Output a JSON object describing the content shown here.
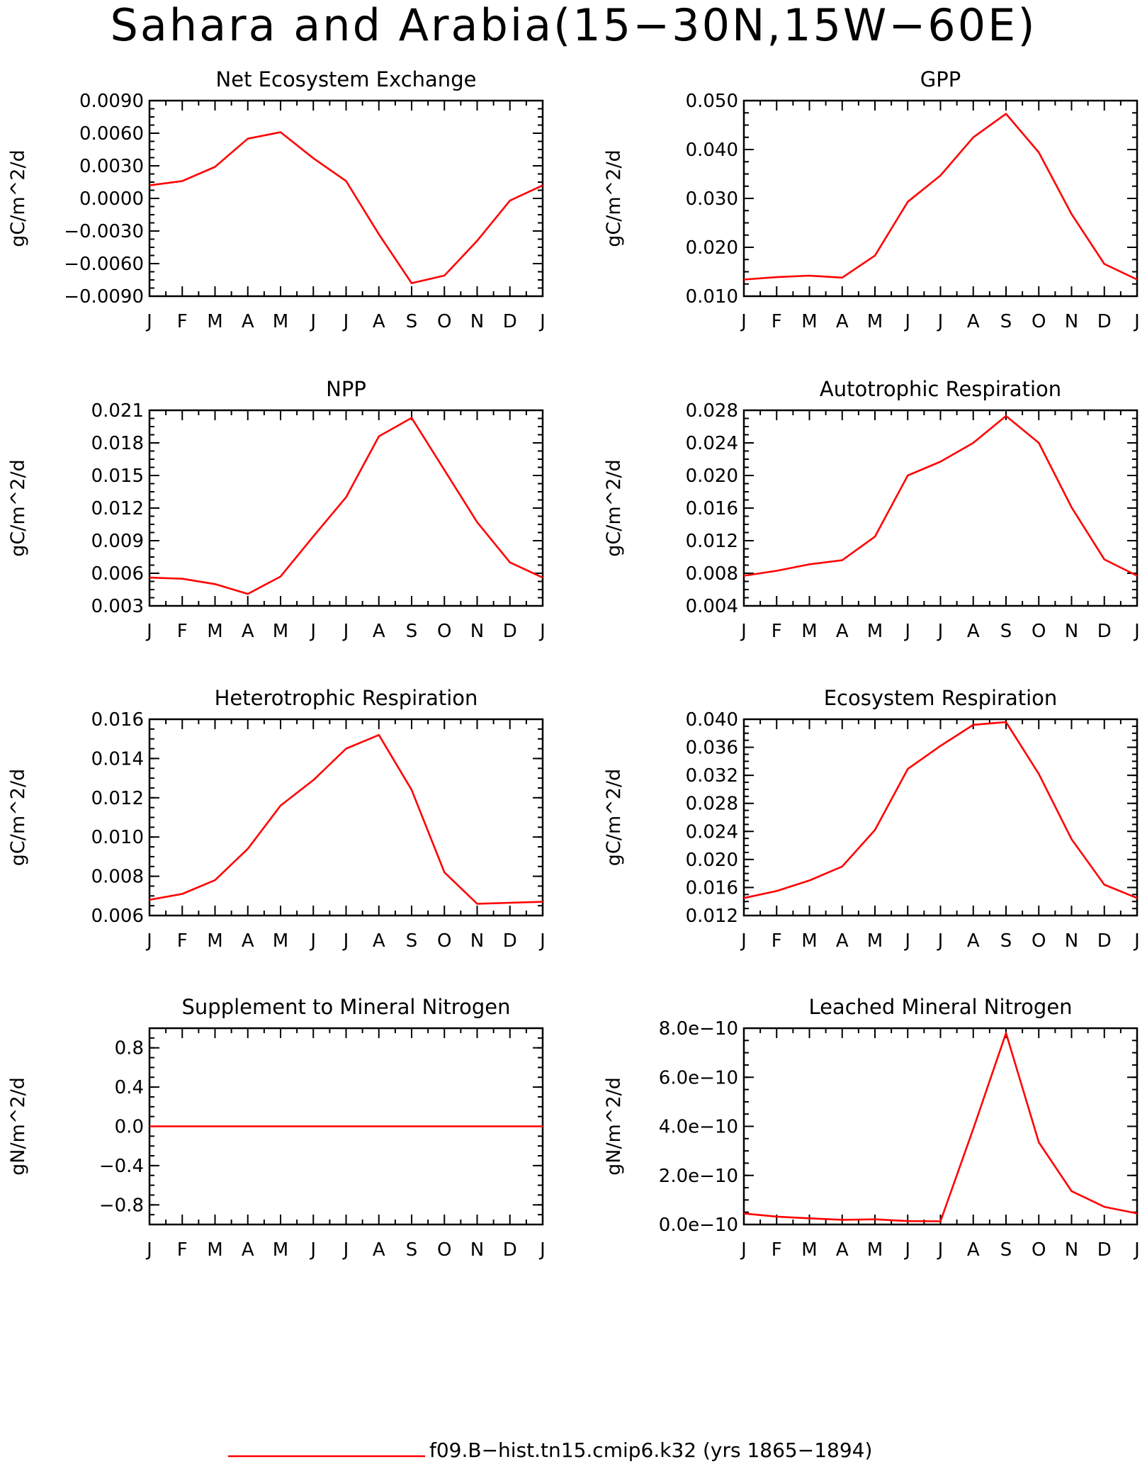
{
  "title": "Sahara and Arabia(15−30N,15W−60E)",
  "legend": {
    "label": "f09.B−hist.tn15.cmip6.k32 (yrs 1865−1894)",
    "color": "#ff0000"
  },
  "chart_data": [
    {
      "type": "line",
      "title": "Net Ecosystem Exchange",
      "ylabel": "gC/m^2/d",
      "categories": [
        "J",
        "F",
        "M",
        "A",
        "M",
        "J",
        "J",
        "A",
        "S",
        "O",
        "N",
        "D",
        "J"
      ],
      "ylim": [
        -0.009,
        0.009
      ],
      "yticks": [
        -0.009,
        -0.006,
        -0.003,
        0.0,
        0.003,
        0.006,
        0.009
      ],
      "ytick_labels": [
        "−0.0090",
        "−0.0060",
        "−0.0030",
        "0.0000",
        "0.0030",
        "0.0060",
        "0.0090"
      ],
      "values": [
        0.0012,
        0.0016,
        0.0029,
        0.0055,
        0.0061,
        0.0037,
        0.0016,
        -0.0033,
        -0.0078,
        -0.0071,
        -0.0039,
        -0.0002,
        0.0012
      ]
    },
    {
      "type": "line",
      "title": "GPP",
      "ylabel": "gC/m^2/d",
      "categories": [
        "J",
        "F",
        "M",
        "A",
        "M",
        "J",
        "J",
        "A",
        "S",
        "O",
        "N",
        "D",
        "J"
      ],
      "ylim": [
        0.01,
        0.05
      ],
      "yticks": [
        0.01,
        0.02,
        0.03,
        0.04,
        0.05
      ],
      "ytick_labels": [
        "0.010",
        "0.020",
        "0.030",
        "0.040",
        "0.050"
      ],
      "values": [
        0.0134,
        0.0139,
        0.0142,
        0.0138,
        0.0183,
        0.0293,
        0.0347,
        0.0425,
        0.0473,
        0.0394,
        0.0268,
        0.0166,
        0.0134
      ]
    },
    {
      "type": "line",
      "title": "NPP",
      "ylabel": "gC/m^2/d",
      "categories": [
        "J",
        "F",
        "M",
        "A",
        "M",
        "J",
        "J",
        "A",
        "S",
        "O",
        "N",
        "D",
        "J"
      ],
      "ylim": [
        0.003,
        0.021
      ],
      "yticks": [
        0.003,
        0.006,
        0.009,
        0.012,
        0.015,
        0.018,
        0.021
      ],
      "ytick_labels": [
        "0.003",
        "0.006",
        "0.009",
        "0.012",
        "0.015",
        "0.018",
        "0.021"
      ],
      "values": [
        0.0056,
        0.0055,
        0.005,
        0.0041,
        0.0057,
        0.0094,
        0.013,
        0.0186,
        0.0203,
        0.0155,
        0.0107,
        0.007,
        0.0056
      ]
    },
    {
      "type": "line",
      "title": "Autotrophic Respiration",
      "ylabel": "gC/m^2/d",
      "categories": [
        "J",
        "F",
        "M",
        "A",
        "M",
        "J",
        "J",
        "A",
        "S",
        "O",
        "N",
        "D",
        "J"
      ],
      "ylim": [
        0.004,
        0.028
      ],
      "yticks": [
        0.004,
        0.008,
        0.012,
        0.016,
        0.02,
        0.024,
        0.028
      ],
      "ytick_labels": [
        "0.004",
        "0.008",
        "0.012",
        "0.016",
        "0.020",
        "0.024",
        "0.028"
      ],
      "values": [
        0.0077,
        0.0083,
        0.0091,
        0.0096,
        0.0125,
        0.02,
        0.0217,
        0.024,
        0.0273,
        0.024,
        0.0161,
        0.0097,
        0.0077
      ]
    },
    {
      "type": "line",
      "title": "Heterotrophic Respiration",
      "ylabel": "gC/m^2/d",
      "categories": [
        "J",
        "F",
        "M",
        "A",
        "M",
        "J",
        "J",
        "A",
        "S",
        "O",
        "N",
        "D",
        "J"
      ],
      "ylim": [
        0.006,
        0.016
      ],
      "yticks": [
        0.006,
        0.008,
        0.01,
        0.012,
        0.014,
        0.016
      ],
      "ytick_labels": [
        "0.006",
        "0.008",
        "0.010",
        "0.012",
        "0.014",
        "0.016"
      ],
      "values": [
        0.0068,
        0.0071,
        0.0078,
        0.0094,
        0.0116,
        0.0129,
        0.0145,
        0.0152,
        0.0124,
        0.0082,
        0.0066,
        0.00665,
        0.0067
      ]
    },
    {
      "type": "line",
      "title": "Ecosystem Respiration",
      "ylabel": "gC/m^2/d",
      "categories": [
        "J",
        "F",
        "M",
        "A",
        "M",
        "J",
        "J",
        "A",
        "S",
        "O",
        "N",
        "D",
        "J"
      ],
      "ylim": [
        0.012,
        0.04
      ],
      "yticks": [
        0.012,
        0.016,
        0.02,
        0.024,
        0.028,
        0.032,
        0.036,
        0.04
      ],
      "ytick_labels": [
        "0.012",
        "0.016",
        "0.020",
        "0.024",
        "0.028",
        "0.032",
        "0.036",
        "0.040"
      ],
      "values": [
        0.0145,
        0.0155,
        0.017,
        0.019,
        0.0242,
        0.0329,
        0.0362,
        0.0392,
        0.0396,
        0.0322,
        0.0229,
        0.0164,
        0.0145
      ]
    },
    {
      "type": "line",
      "title": "Supplement to Mineral Nitrogen",
      "ylabel": "gN/m^2/d",
      "categories": [
        "J",
        "F",
        "M",
        "A",
        "M",
        "J",
        "J",
        "A",
        "S",
        "O",
        "N",
        "D",
        "J"
      ],
      "ylim": [
        -1.0,
        1.0
      ],
      "yticks": [
        -0.8,
        -0.4,
        0.0,
        0.4,
        0.8
      ],
      "ytick_labels": [
        "−0.8",
        "−0.4",
        "0.0",
        "0.4",
        "0.8"
      ],
      "values": [
        0,
        0,
        0,
        0,
        0,
        0,
        0,
        0,
        0,
        0,
        0,
        0,
        0
      ]
    },
    {
      "type": "line",
      "title": "Leached Mineral Nitrogen",
      "ylabel": "gN/m^2/d",
      "categories": [
        "J",
        "F",
        "M",
        "A",
        "M",
        "J",
        "J",
        "A",
        "S",
        "O",
        "N",
        "D",
        "J"
      ],
      "ylim": [
        0.0,
        8e-10
      ],
      "yticks": [
        0.0,
        2e-10,
        4e-10,
        6e-10,
        8e-10
      ],
      "ytick_labels": [
        "0.0e−10",
        "2.0e−10",
        "4.0e−10",
        "6.0e−10",
        "8.0e−10"
      ],
      "values": [
        4.5e-11,
        3.2e-11,
        2.5e-11,
        1.9e-11,
        2.1e-11,
        1.4e-11,
        1.3e-11,
        3.9e-10,
        7.8e-10,
        3.35e-10,
        1.36e-10,
        7.2e-11,
        4.5e-11
      ]
    }
  ]
}
